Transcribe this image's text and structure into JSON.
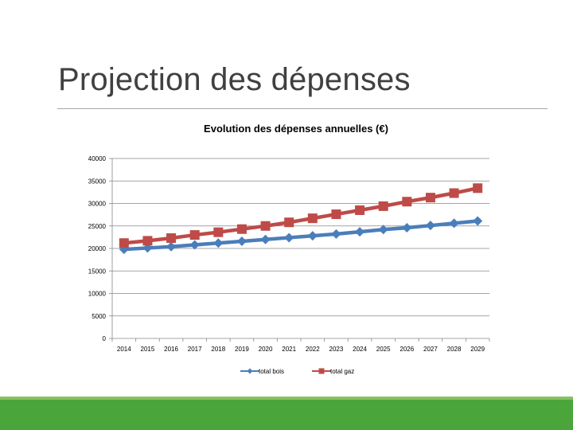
{
  "slide": {
    "title": "Projection des dépenses"
  },
  "colors": {
    "series_bois": "#4a7ebb",
    "series_gaz": "#be4b48",
    "footer": "#4aa63a"
  },
  "chart_data": {
    "type": "line",
    "title": "Evolution des dépenses annuelles (€)",
    "xlabel": "",
    "ylabel": "",
    "categories": [
      "2014",
      "2015",
      "2016",
      "2017",
      "2018",
      "2019",
      "2020",
      "2021",
      "2022",
      "2023",
      "2024",
      "2025",
      "2026",
      "2027",
      "2028",
      "2029"
    ],
    "ylim": [
      0,
      40000
    ],
    "yticks": [
      0,
      5000,
      10000,
      15000,
      20000,
      25000,
      30000,
      35000,
      40000
    ],
    "grid": true,
    "legend": "bottom",
    "series": [
      {
        "name": "total bois",
        "marker": "diamond",
        "values": [
          19800,
          20100,
          20400,
          20800,
          21200,
          21600,
          22000,
          22400,
          22800,
          23200,
          23700,
          24200,
          24600,
          25100,
          25600,
          26100
        ]
      },
      {
        "name": "total gaz",
        "marker": "square",
        "values": [
          21200,
          21700,
          22300,
          23000,
          23600,
          24300,
          25000,
          25800,
          26700,
          27600,
          28500,
          29400,
          30400,
          31300,
          32300,
          33400
        ]
      }
    ]
  }
}
